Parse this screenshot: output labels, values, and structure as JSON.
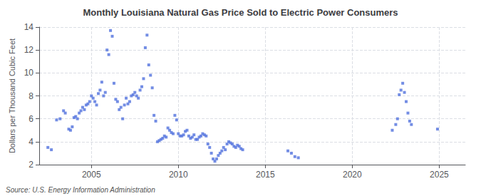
{
  "chart_data": {
    "type": "scatter",
    "title": "Monthly Louisiana Natural Gas Price Sold to Electric Power Consumers",
    "ylabel": "Dollars per Thousand Cubic Feet",
    "annotation": "Source: U.S. Energy Information Administration",
    "marker": "square",
    "grid": true,
    "xlim": [
      2002.0,
      2026.5
    ],
    "ylim": [
      2,
      14
    ],
    "xticks": [
      2005,
      2010,
      2015,
      2020,
      2025
    ],
    "yticks": [
      2,
      4,
      6,
      8,
      10,
      12,
      14
    ],
    "x": [
      2002.5,
      2002.7,
      2003.0,
      2003.2,
      2003.4,
      2003.5,
      2003.7,
      2003.8,
      2003.9,
      2004.0,
      2004.1,
      2004.2,
      2004.3,
      2004.4,
      2004.5,
      2004.6,
      2004.7,
      2004.8,
      2004.9,
      2005.0,
      2005.1,
      2005.2,
      2005.3,
      2005.4,
      2005.5,
      2005.6,
      2005.7,
      2005.8,
      2005.9,
      2006.0,
      2006.1,
      2006.2,
      2006.3,
      2006.4,
      2006.5,
      2006.6,
      2006.7,
      2006.8,
      2006.9,
      2007.0,
      2007.1,
      2007.2,
      2007.3,
      2007.4,
      2007.5,
      2007.6,
      2007.7,
      2007.8,
      2007.9,
      2008.0,
      2008.1,
      2008.2,
      2008.3,
      2008.4,
      2008.5,
      2008.6,
      2008.7,
      2008.8,
      2008.9,
      2009.0,
      2009.1,
      2009.2,
      2009.3,
      2009.4,
      2009.5,
      2009.6,
      2009.7,
      2009.8,
      2009.9,
      2010.0,
      2010.1,
      2010.2,
      2010.3,
      2010.4,
      2010.5,
      2010.6,
      2010.7,
      2010.8,
      2010.9,
      2011.0,
      2011.1,
      2011.2,
      2011.3,
      2011.4,
      2011.5,
      2011.6,
      2011.7,
      2011.8,
      2011.9,
      2012.0,
      2012.1,
      2012.2,
      2012.3,
      2012.4,
      2012.5,
      2012.6,
      2012.7,
      2012.8,
      2012.9,
      2013.0,
      2013.1,
      2013.2,
      2013.3,
      2013.4,
      2013.5,
      2013.6,
      2013.7,
      2016.3,
      2016.5,
      2016.7,
      2016.9,
      2022.3,
      2022.5,
      2022.6,
      2022.7,
      2022.8,
      2022.9,
      2023.0,
      2023.1,
      2023.2,
      2023.3,
      2023.4,
      2024.9
    ],
    "values": [
      3.5,
      3.3,
      5.9,
      6.0,
      6.7,
      6.5,
      5.1,
      5.0,
      5.3,
      6.1,
      6.2,
      6.0,
      6.5,
      6.7,
      7.0,
      6.8,
      7.2,
      7.3,
      7.5,
      8.0,
      7.8,
      7.5,
      7.2,
      8.2,
      8.5,
      9.2,
      8.0,
      8.3,
      12.0,
      11.6,
      13.7,
      13.2,
      9.1,
      7.7,
      7.5,
      6.8,
      7.0,
      6.0,
      7.2,
      7.8,
      7.3,
      7.5,
      8.0,
      8.1,
      8.3,
      8.0,
      7.8,
      8.5,
      8.8,
      9.5,
      12.2,
      13.3,
      10.7,
      9.8,
      8.7,
      6.3,
      5.8,
      4.0,
      4.1,
      4.2,
      4.3,
      4.5,
      4.4,
      5.2,
      5.0,
      4.8,
      4.7,
      6.3,
      5.9,
      4.7,
      4.5,
      4.5,
      4.6,
      4.9,
      5.0,
      4.5,
      4.3,
      4.4,
      4.6,
      4.2,
      4.2,
      4.4,
      4.5,
      4.7,
      4.6,
      4.5,
      3.8,
      3.5,
      3.0,
      2.5,
      2.3,
      2.5,
      2.8,
      3.0,
      3.2,
      3.5,
      3.3,
      3.8,
      4.0,
      3.9,
      3.8,
      3.6,
      3.5,
      3.7,
      3.6,
      3.4,
      3.3,
      3.2,
      3.0,
      2.7,
      2.6,
      5.0,
      5.5,
      6.0,
      8.1,
      8.5,
      9.1,
      8.3,
      7.5,
      6.5,
      5.8,
      5.5,
      5.1
    ]
  }
}
